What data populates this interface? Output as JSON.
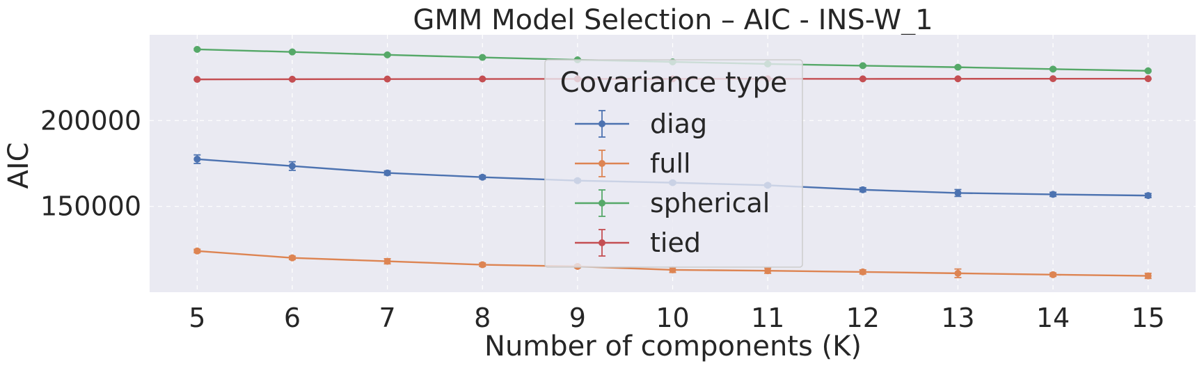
{
  "chart_data": {
    "type": "line",
    "title": "GMM Model Selection – AIC - INS-W_1",
    "xlabel": "Number of components (K)",
    "ylabel": "AIC",
    "x": [
      5,
      6,
      7,
      8,
      9,
      10,
      11,
      12,
      13,
      14,
      15
    ],
    "xlim": [
      4.5,
      15.5
    ],
    "ylim": [
      100000,
      250000
    ],
    "yticks": [
      150000,
      200000
    ],
    "ytick_labels": [
      "150000",
      "200000"
    ],
    "grid": true,
    "grid_style": "dashed",
    "legend": {
      "title": "Covariance type",
      "placement": "center"
    },
    "series": [
      {
        "name": "diag",
        "color": "#4c72b0",
        "values": [
          177500,
          173500,
          169500,
          167000,
          165000,
          163800,
          162300,
          159700,
          157800,
          157000,
          156300
        ],
        "errors": [
          2500,
          2500,
          1200,
          1000,
          800,
          800,
          800,
          1200,
          2000,
          1200,
          1200
        ]
      },
      {
        "name": "full",
        "color": "#dd8452",
        "values": [
          124000,
          120000,
          118000,
          116000,
          115000,
          113000,
          112500,
          111800,
          111000,
          110200,
          109500
        ],
        "errors": [
          1000,
          1000,
          1500,
          1000,
          800,
          1500,
          1500,
          1200,
          2500,
          1000,
          1500
        ]
      },
      {
        "name": "spherical",
        "color": "#55a868",
        "values": [
          241500,
          240000,
          238300,
          236800,
          235400,
          234200,
          233000,
          232000,
          231100,
          230000,
          229000
        ],
        "errors": [
          500,
          500,
          500,
          500,
          500,
          500,
          500,
          500,
          500,
          500,
          500
        ]
      },
      {
        "name": "tied",
        "color": "#c44e52",
        "values": [
          224000,
          224100,
          224200,
          224250,
          224300,
          224300,
          224350,
          224300,
          224350,
          224400,
          224400
        ],
        "errors": [
          300,
          300,
          300,
          300,
          300,
          300,
          300,
          300,
          300,
          300,
          300
        ]
      }
    ]
  }
}
